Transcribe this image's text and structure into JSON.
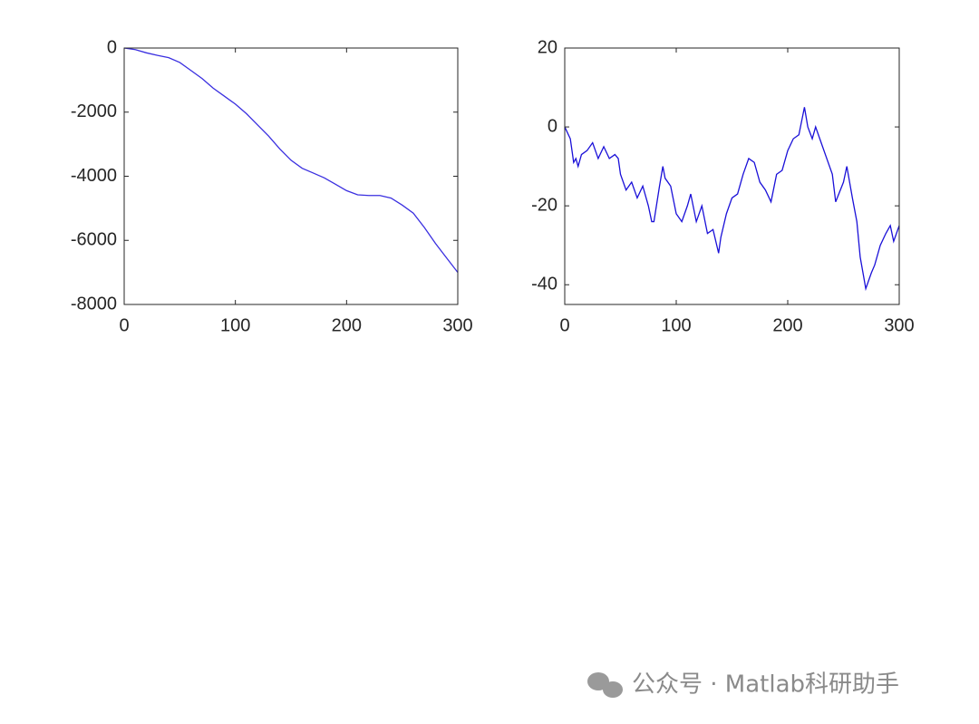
{
  "chart_data": [
    {
      "type": "line",
      "x": [
        0,
        10,
        20,
        30,
        40,
        50,
        60,
        70,
        80,
        90,
        100,
        110,
        120,
        130,
        140,
        150,
        160,
        170,
        180,
        190,
        200,
        210,
        220,
        230,
        240,
        250,
        260,
        270,
        280,
        290,
        300
      ],
      "values": [
        0,
        -50,
        -150,
        -230,
        -300,
        -450,
        -700,
        -950,
        -1250,
        -1500,
        -1750,
        -2050,
        -2400,
        -2750,
        -3150,
        -3500,
        -3750,
        -3900,
        -4050,
        -4250,
        -4450,
        -4580,
        -4600,
        -4600,
        -4680,
        -4900,
        -5150,
        -5600,
        -6100,
        -6550,
        -7000
      ],
      "color": "#3a2fe0",
      "xlim": [
        0,
        300
      ],
      "xticks": [
        0,
        100,
        200,
        300
      ],
      "ylim": [
        -8000,
        0
      ],
      "yticks": [
        0,
        -2000,
        -4000,
        -6000,
        -8000
      ]
    },
    {
      "type": "line",
      "x": [
        0,
        5,
        8,
        10,
        12,
        15,
        20,
        25,
        30,
        35,
        40,
        45,
        48,
        50,
        55,
        60,
        65,
        70,
        75,
        78,
        80,
        85,
        88,
        90,
        95,
        100,
        105,
        110,
        113,
        118,
        123,
        128,
        133,
        138,
        140,
        145,
        150,
        155,
        160,
        165,
        170,
        175,
        180,
        185,
        190,
        195,
        200,
        205,
        210,
        215,
        218,
        222,
        225,
        230,
        235,
        240,
        243,
        250,
        253,
        258,
        262,
        265,
        270,
        275,
        278,
        283,
        288,
        292,
        295,
        300
      ],
      "values": [
        0,
        -3,
        -9,
        -8,
        -10,
        -7,
        -6,
        -4,
        -8,
        -5,
        -8,
        -7,
        -8,
        -12,
        -16,
        -14,
        -18,
        -15,
        -20,
        -24,
        -24,
        -15,
        -10,
        -13,
        -15,
        -22,
        -24,
        -20,
        -17,
        -24,
        -20,
        -27,
        -26,
        -32,
        -28,
        -22,
        -18,
        -17,
        -12,
        -8,
        -9,
        -14,
        -16,
        -19,
        -12,
        -11,
        -6,
        -3,
        -2,
        5,
        0,
        -3,
        0,
        -4,
        -8,
        -12,
        -19,
        -14,
        -10,
        -18,
        -24,
        -33,
        -41,
        -37,
        -35,
        -30,
        -27,
        -25,
        -29,
        -25
      ],
      "color": "#1a10d8",
      "xlim": [
        0,
        300
      ],
      "xticks": [
        0,
        100,
        200,
        300
      ],
      "ylim": [
        -45,
        20
      ],
      "yticks": [
        20,
        0,
        -20,
        -40
      ]
    }
  ],
  "watermark": "公众号 · Matlab科研助手"
}
